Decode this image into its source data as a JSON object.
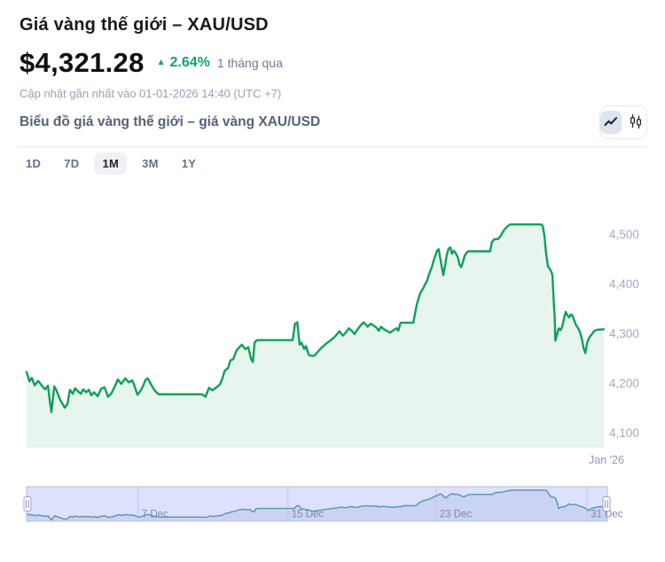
{
  "header": {
    "title": "Giá vàng thế giới – XAU/USD",
    "price": "$4,321.28",
    "change_icon": "▲",
    "change_pct": "2.64%",
    "change_period": "1 tháng qua",
    "updated": "Cập nhật gần nhất vào 01-01-2026 14:40 (UTC +7)"
  },
  "toolbar": {
    "subtitle": "Biểu đồ giá vàng thế giới – giá vàng XAU/USD",
    "chart_types": [
      {
        "name": "line",
        "active": true
      },
      {
        "name": "candlestick",
        "active": false
      }
    ]
  },
  "ranges": [
    {
      "label": "1D",
      "active": false
    },
    {
      "label": "7D",
      "active": false
    },
    {
      "label": "1M",
      "active": true
    },
    {
      "label": "3M",
      "active": false
    },
    {
      "label": "1Y",
      "active": false
    }
  ],
  "colors": {
    "positive_text": "#0CA46E",
    "line_green": "#0FA05C",
    "area_fill": "#E8F5EE",
    "nav_background": "#DDE1FB",
    "nav_area_fill": "#CBD3F4",
    "nav_line": "#5697A7",
    "nav_border": "#B7BDDE",
    "tick_label": "#A1AABF"
  },
  "chart_data": {
    "type": "area",
    "title": "Giá vàng thế giới – XAU/USD, 1 tháng",
    "xlabel": "",
    "ylabel": "",
    "xtick": "Jan '26",
    "yticks": [
      "4,500",
      "4,400",
      "4,300",
      "4,200",
      "4,100"
    ],
    "ytick_values": [
      4500,
      4400,
      4300,
      4200,
      4100
    ],
    "ylim": [
      4085,
      4545
    ],
    "grid": false,
    "legend": false,
    "series": [
      {
        "name": "XAU/USD",
        "color": "#0FA05C",
        "fill": "#E8F5EE",
        "points": [
          [
            0.0,
            4224
          ],
          [
            0.005,
            4205
          ],
          [
            0.009,
            4212
          ],
          [
            0.014,
            4197
          ],
          [
            0.02,
            4206
          ],
          [
            0.026,
            4197
          ],
          [
            0.032,
            4189
          ],
          [
            0.037,
            4196
          ],
          [
            0.04,
            4168
          ],
          [
            0.043,
            4143
          ],
          [
            0.048,
            4195
          ],
          [
            0.052,
            4186
          ],
          [
            0.058,
            4168
          ],
          [
            0.066,
            4152
          ],
          [
            0.071,
            4160
          ],
          [
            0.075,
            4188
          ],
          [
            0.08,
            4180
          ],
          [
            0.084,
            4191
          ],
          [
            0.089,
            4185
          ],
          [
            0.094,
            4180
          ],
          [
            0.098,
            4189
          ],
          [
            0.103,
            4183
          ],
          [
            0.108,
            4188
          ],
          [
            0.112,
            4177
          ],
          [
            0.117,
            4183
          ],
          [
            0.123,
            4175
          ],
          [
            0.129,
            4190
          ],
          [
            0.135,
            4193
          ],
          [
            0.141,
            4174
          ],
          [
            0.147,
            4181
          ],
          [
            0.154,
            4198
          ],
          [
            0.158,
            4209
          ],
          [
            0.164,
            4200
          ],
          [
            0.171,
            4211
          ],
          [
            0.177,
            4203
          ],
          [
            0.183,
            4207
          ],
          [
            0.187,
            4196
          ],
          [
            0.192,
            4178
          ],
          [
            0.197,
            4185
          ],
          [
            0.201,
            4194
          ],
          [
            0.206,
            4208
          ],
          [
            0.21,
            4211
          ],
          [
            0.215,
            4200
          ],
          [
            0.22,
            4190
          ],
          [
            0.224,
            4184
          ],
          [
            0.229,
            4179
          ],
          [
            0.304,
            4179
          ],
          [
            0.31,
            4174
          ],
          [
            0.316,
            4192
          ],
          [
            0.322,
            4187
          ],
          [
            0.329,
            4193
          ],
          [
            0.335,
            4199
          ],
          [
            0.339,
            4210
          ],
          [
            0.343,
            4226
          ],
          [
            0.349,
            4232
          ],
          [
            0.353,
            4247
          ],
          [
            0.358,
            4250
          ],
          [
            0.364,
            4268
          ],
          [
            0.369,
            4274
          ],
          [
            0.373,
            4279
          ],
          [
            0.376,
            4274
          ],
          [
            0.379,
            4270
          ],
          [
            0.384,
            4274
          ],
          [
            0.389,
            4250
          ],
          [
            0.392,
            4244
          ],
          [
            0.395,
            4283
          ],
          [
            0.399,
            4288
          ],
          [
            0.461,
            4288
          ],
          [
            0.465,
            4321
          ],
          [
            0.469,
            4324
          ],
          [
            0.473,
            4279
          ],
          [
            0.476,
            4283
          ],
          [
            0.481,
            4270
          ],
          [
            0.484,
            4276
          ],
          [
            0.489,
            4258
          ],
          [
            0.495,
            4256
          ],
          [
            0.499,
            4257
          ],
          [
            0.507,
            4268
          ],
          [
            0.512,
            4274
          ],
          [
            0.519,
            4281
          ],
          [
            0.527,
            4288
          ],
          [
            0.533,
            4294
          ],
          [
            0.538,
            4300
          ],
          [
            0.542,
            4306
          ],
          [
            0.548,
            4297
          ],
          [
            0.553,
            4303
          ],
          [
            0.558,
            4312
          ],
          [
            0.564,
            4306
          ],
          [
            0.568,
            4300
          ],
          [
            0.573,
            4309
          ],
          [
            0.579,
            4318
          ],
          [
            0.584,
            4324
          ],
          [
            0.588,
            4319
          ],
          [
            0.591,
            4315
          ],
          [
            0.596,
            4321
          ],
          [
            0.602,
            4317
          ],
          [
            0.607,
            4312
          ],
          [
            0.61,
            4307
          ],
          [
            0.614,
            4315
          ],
          [
            0.619,
            4310
          ],
          [
            0.625,
            4306
          ],
          [
            0.63,
            4303
          ],
          [
            0.634,
            4307
          ],
          [
            0.641,
            4312
          ],
          [
            0.644,
            4307
          ],
          [
            0.648,
            4323
          ],
          [
            0.67,
            4323
          ],
          [
            0.673,
            4342
          ],
          [
            0.676,
            4360
          ],
          [
            0.679,
            4372
          ],
          [
            0.682,
            4383
          ],
          [
            0.687,
            4392
          ],
          [
            0.691,
            4402
          ],
          [
            0.694,
            4408
          ],
          [
            0.697,
            4420
          ],
          [
            0.702,
            4435
          ],
          [
            0.705,
            4448
          ],
          [
            0.708,
            4458
          ],
          [
            0.711,
            4468
          ],
          [
            0.714,
            4471
          ],
          [
            0.717,
            4450
          ],
          [
            0.722,
            4419
          ],
          [
            0.725,
            4438
          ],
          [
            0.728,
            4460
          ],
          [
            0.731,
            4472
          ],
          [
            0.734,
            4475
          ],
          [
            0.737,
            4462
          ],
          [
            0.74,
            4468
          ],
          [
            0.743,
            4464
          ],
          [
            0.747,
            4455
          ],
          [
            0.75,
            4440
          ],
          [
            0.753,
            4435
          ],
          [
            0.756,
            4446
          ],
          [
            0.759,
            4458
          ],
          [
            0.762,
            4464
          ],
          [
            0.765,
            4467
          ],
          [
            0.803,
            4467
          ],
          [
            0.806,
            4485
          ],
          [
            0.81,
            4491
          ],
          [
            0.817,
            4492
          ],
          [
            0.822,
            4499
          ],
          [
            0.826,
            4508
          ],
          [
            0.831,
            4515
          ],
          [
            0.836,
            4520
          ],
          [
            0.838,
            4521
          ],
          [
            0.891,
            4521
          ],
          [
            0.894,
            4519
          ],
          [
            0.897,
            4500
          ],
          [
            0.9,
            4463
          ],
          [
            0.903,
            4437
          ],
          [
            0.906,
            4432
          ],
          [
            0.909,
            4426
          ],
          [
            0.911,
            4418
          ],
          [
            0.913,
            4370
          ],
          [
            0.915,
            4330
          ],
          [
            0.916,
            4287
          ],
          [
            0.919,
            4300
          ],
          [
            0.922,
            4312
          ],
          [
            0.925,
            4308
          ],
          [
            0.928,
            4315
          ],
          [
            0.931,
            4332
          ],
          [
            0.934,
            4345
          ],
          [
            0.937,
            4338
          ],
          [
            0.94,
            4334
          ],
          [
            0.943,
            4340
          ],
          [
            0.946,
            4337
          ],
          [
            0.949,
            4327
          ],
          [
            0.952,
            4318
          ],
          [
            0.956,
            4311
          ],
          [
            0.959,
            4303
          ],
          [
            0.962,
            4290
          ],
          [
            0.965,
            4272
          ],
          [
            0.968,
            4262
          ],
          [
            0.971,
            4282
          ],
          [
            0.974,
            4292
          ],
          [
            0.977,
            4297
          ],
          [
            0.98,
            4301
          ],
          [
            0.983,
            4306
          ],
          [
            0.986,
            4308
          ],
          [
            0.989,
            4309
          ],
          [
            1.0,
            4310
          ]
        ]
      }
    ],
    "navigator": {
      "ticks": [
        {
          "t": 0.192,
          "label": "7 Dec"
        },
        {
          "t": 0.45,
          "label": "15 Dec"
        },
        {
          "t": 0.705,
          "label": "23 Dec"
        },
        {
          "t": 0.965,
          "label": "31 Dec"
        }
      ],
      "vmin": 4143,
      "vmax": 4525
    }
  }
}
